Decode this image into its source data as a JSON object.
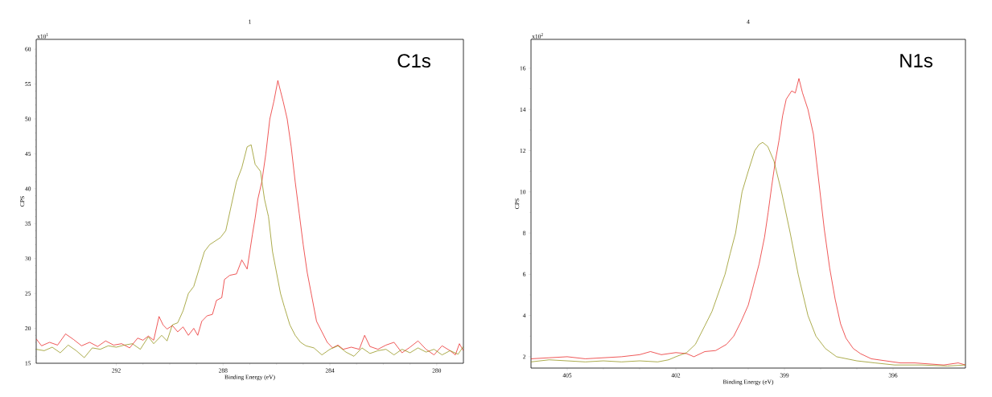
{
  "chart_data": [
    {
      "type": "line",
      "title": "1",
      "xlabel": "Binding Energy (eV)",
      "ylabel": "CPS",
      "annotations": [
        "x10$^{1}$",
        "C1s"
      ],
      "xlim": [
        295,
        279
      ],
      "xticks": [
        292,
        288,
        284,
        280
      ],
      "ylim": [
        15,
        61.4
      ],
      "yticks": [
        15,
        20,
        25,
        30,
        35,
        40,
        45,
        50,
        55,
        60
      ],
      "series": [
        {
          "color": "#888800",
          "x": [
            295,
            294.7,
            294.4,
            294.1,
            293.8,
            293.5,
            293.2,
            292.9,
            292.6,
            292.3,
            292.0,
            291.7,
            291.4,
            291.1,
            290.8,
            290.6,
            290.3,
            290.1,
            289.9,
            289.7,
            289.5,
            289.3,
            289.1,
            288.9,
            288.7,
            288.5,
            288.3,
            288.1,
            287.9,
            287.7,
            287.5,
            287.3,
            287.1,
            286.95,
            286.8,
            286.6,
            286.45,
            286.3,
            286.15,
            286.0,
            285.85,
            285.7,
            285.5,
            285.3,
            285.1,
            284.9,
            284.6,
            284.3,
            284.0,
            283.7,
            283.4,
            283.1,
            282.8,
            282.5,
            282.2,
            281.9,
            281.6,
            281.3,
            281.0,
            280.7,
            280.4,
            280.1,
            279.8,
            279.5,
            279.2,
            279.0
          ],
          "values": [
            17.0,
            16.8,
            17.3,
            16.5,
            17.6,
            16.8,
            15.8,
            17.2,
            17.0,
            17.5,
            17.3,
            17.6,
            17.8,
            17.0,
            18.8,
            17.8,
            19.0,
            18.2,
            20.5,
            20.8,
            22.5,
            25.0,
            26.0,
            28.5,
            31.0,
            32.0,
            32.5,
            33.0,
            34.0,
            37.5,
            41.0,
            43.0,
            46.0,
            46.3,
            43.5,
            42.5,
            38.5,
            36.0,
            31.0,
            28.0,
            25.0,
            23.0,
            20.5,
            19.0,
            18.0,
            17.5,
            17.2,
            16.2,
            17.0,
            17.5,
            16.6,
            16.0,
            17.2,
            16.4,
            16.8,
            17.0,
            16.2,
            17.0,
            16.5,
            17.2,
            16.6,
            17.0,
            16.2,
            16.8,
            16.3,
            17.4
          ]
        },
        {
          "color": "#e81010",
          "x": [
            295,
            294.8,
            294.5,
            294.2,
            293.9,
            293.6,
            293.3,
            293.0,
            292.7,
            292.4,
            292.1,
            291.8,
            291.5,
            291.2,
            291.0,
            290.8,
            290.6,
            290.4,
            290.25,
            290.1,
            289.9,
            289.7,
            289.5,
            289.3,
            289.1,
            288.95,
            288.8,
            288.6,
            288.4,
            288.25,
            288.05,
            287.95,
            287.75,
            287.5,
            287.3,
            287.1,
            287.0,
            286.9,
            286.8,
            286.7,
            286.55,
            286.4,
            286.25,
            286.1,
            285.95,
            285.85,
            285.75,
            285.6,
            285.45,
            285.3,
            285.15,
            285.0,
            284.85,
            284.7,
            284.5,
            284.3,
            284.1,
            283.9,
            283.7,
            283.5,
            283.2,
            282.9,
            282.7,
            282.5,
            282.2,
            281.9,
            281.6,
            281.3,
            281.0,
            280.7,
            280.4,
            280.1,
            279.8,
            279.5,
            279.3,
            279.15,
            279.0
          ],
          "values": [
            18.5,
            17.5,
            18,
            17.6,
            19.2,
            18.4,
            17.5,
            18.0,
            17.4,
            18.2,
            17.6,
            17.8,
            17.2,
            18.6,
            18.3,
            18.9,
            18.3,
            21.7,
            20.5,
            19.9,
            20.4,
            19.5,
            20.2,
            19.0,
            20.0,
            19.0,
            21.0,
            21.8,
            22.0,
            24.0,
            24.4,
            27.0,
            27.6,
            27.8,
            29.8,
            28.5,
            31.0,
            33.5,
            35.8,
            38.5,
            41.0,
            45.0,
            50.0,
            52.5,
            55.5,
            54.0,
            52.5,
            50.0,
            46.0,
            41.0,
            36.5,
            32.0,
            28.0,
            25.0,
            21.0,
            19.5,
            18.0,
            17.2,
            17.6,
            17.0,
            17.3,
            17.0,
            19.0,
            17.4,
            17.0,
            17.6,
            18.0,
            16.5,
            17.3,
            18.2,
            17.0,
            16.2,
            17.5,
            16.8,
            16.2,
            17.8,
            16.8
          ]
        }
      ]
    },
    {
      "type": "line",
      "title": "4",
      "xlabel": "Binding Energy (eV)",
      "ylabel": "CPS",
      "annotations": [
        "x10$^{2}$",
        "N1s"
      ],
      "xlim": [
        406,
        394
      ],
      "xticks": [
        405,
        402,
        399,
        396
      ],
      "ylim": [
        1.45,
        17.4
      ],
      "yticks": [
        2,
        4,
        6,
        8,
        10,
        12,
        14,
        16
      ],
      "series": [
        {
          "color": "#888800",
          "x": [
            406,
            405.5,
            405,
            404.5,
            404,
            403.5,
            403,
            402.5,
            402.2,
            402,
            401.7,
            401.46,
            401.2,
            401.0,
            400.84,
            400.64,
            400.5,
            400.35,
            400.17,
            400.0,
            399.82,
            399.7,
            399.6,
            399.46,
            399.29,
            399.08,
            398.84,
            398.62,
            398.35,
            398.13,
            397.87,
            397.56,
            397.0,
            396.5,
            395.96,
            395.2,
            394.5,
            394.0
          ],
          "values": [
            1.75,
            1.85,
            1.8,
            1.75,
            1.8,
            1.75,
            1.8,
            1.75,
            1.85,
            2.0,
            2.2,
            2.6,
            3.5,
            4.2,
            5.0,
            6.0,
            7.0,
            8.0,
            10.0,
            11.0,
            12.0,
            12.3,
            12.4,
            12.2,
            11.5,
            10.0,
            8.0,
            6.0,
            4.0,
            3.0,
            2.4,
            2.0,
            1.8,
            1.7,
            1.6,
            1.6,
            1.55,
            1.6
          ]
        },
        {
          "color": "#e81010",
          "x": [
            406,
            405.5,
            405,
            404.5,
            404,
            403.5,
            403,
            402.7,
            402.4,
            402,
            401.7,
            401.5,
            401.2,
            400.9,
            400.6,
            400.4,
            400.2,
            400.0,
            399.85,
            399.7,
            399.55,
            399.45,
            399.35,
            399.25,
            399.15,
            399.05,
            398.95,
            398.8,
            398.7,
            398.6,
            398.5,
            398.35,
            398.2,
            398.05,
            397.9,
            397.75,
            397.6,
            397.45,
            397.3,
            397.1,
            396.9,
            396.6,
            396.2,
            395.8,
            395.4,
            395.0,
            394.6,
            394.2,
            394.0
          ],
          "values": [
            1.9,
            1.95,
            2.0,
            1.9,
            1.95,
            2.0,
            2.1,
            2.25,
            2.1,
            2.2,
            2.15,
            2.0,
            2.25,
            2.3,
            2.6,
            3.0,
            3.7,
            4.5,
            5.5,
            6.5,
            7.8,
            9.0,
            10.3,
            11.5,
            12.5,
            13.7,
            14.5,
            14.9,
            14.8,
            15.5,
            14.8,
            14.0,
            12.8,
            10.5,
            8.2,
            6.3,
            4.8,
            3.6,
            2.9,
            2.4,
            2.15,
            1.9,
            1.8,
            1.7,
            1.7,
            1.65,
            1.6,
            1.7,
            1.6
          ]
        }
      ]
    }
  ]
}
